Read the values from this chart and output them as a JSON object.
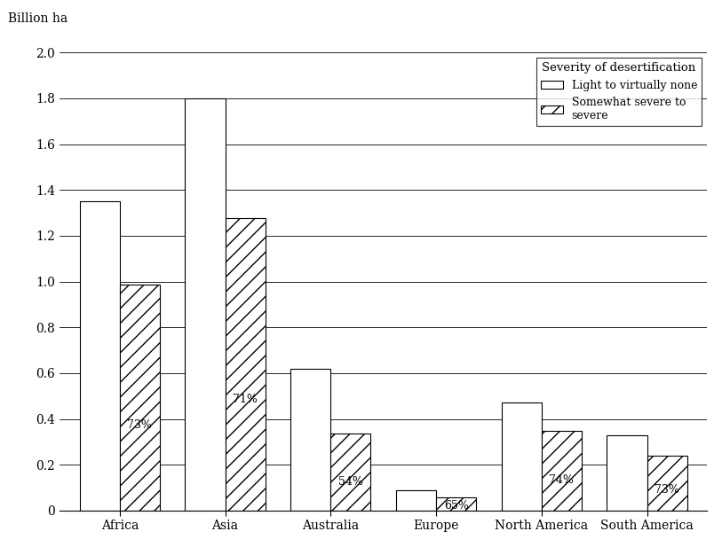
{
  "categories": [
    "Africa",
    "Asia",
    "Australia",
    "Europe",
    "North America",
    "South America"
  ],
  "total_values": [
    1.35,
    1.8,
    0.62,
    0.09,
    0.47,
    0.33
  ],
  "hatched_values": [
    0.985,
    1.278,
    0.335,
    0.0585,
    0.348,
    0.241
  ],
  "percentages": [
    "73%",
    "71%",
    "54%",
    "65%",
    "74%",
    "73%"
  ],
  "ylabel": "Billion ha",
  "ylim": [
    0,
    2.0
  ],
  "yticks": [
    0,
    0.2,
    0.4,
    0.6,
    0.8,
    1.0,
    1.2,
    1.4,
    1.6,
    1.8,
    2.0
  ],
  "legend_title": "Severity of desertification",
  "legend_labels": [
    "Light to virtually none",
    "Somewhat severe to\nsevere"
  ],
  "bar_width": 0.38,
  "background_color": "#ffffff",
  "bar_edge_color": "#000000",
  "hatch_pattern": "//"
}
